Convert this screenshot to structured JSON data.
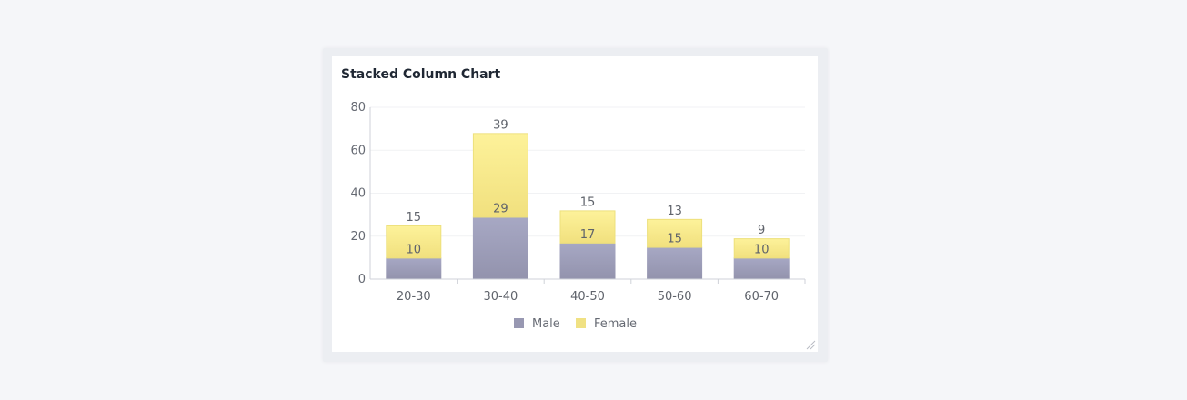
{
  "widget": {
    "title": "Stacked Column Chart"
  },
  "colors": {
    "male_top": "#a7a8c4",
    "male_bottom": "#9393ad",
    "female_top": "#fdf29a",
    "female_bottom": "#f1e07e",
    "legend_male": "#9898b2",
    "legend_female": "#f0e183"
  },
  "chart_data": {
    "type": "bar",
    "stacked": true,
    "title": "Stacked Column Chart",
    "categories": [
      "20-30",
      "30-40",
      "40-50",
      "50-60",
      "60-70"
    ],
    "series": [
      {
        "name": "Male",
        "values": [
          10,
          29,
          17,
          15,
          10
        ]
      },
      {
        "name": "Female",
        "values": [
          15,
          39,
          15,
          13,
          9
        ]
      }
    ],
    "ylim": [
      0,
      80
    ],
    "yticks": [
      0,
      20,
      40,
      60,
      80
    ],
    "grid": true,
    "legend": "bottom-center"
  }
}
